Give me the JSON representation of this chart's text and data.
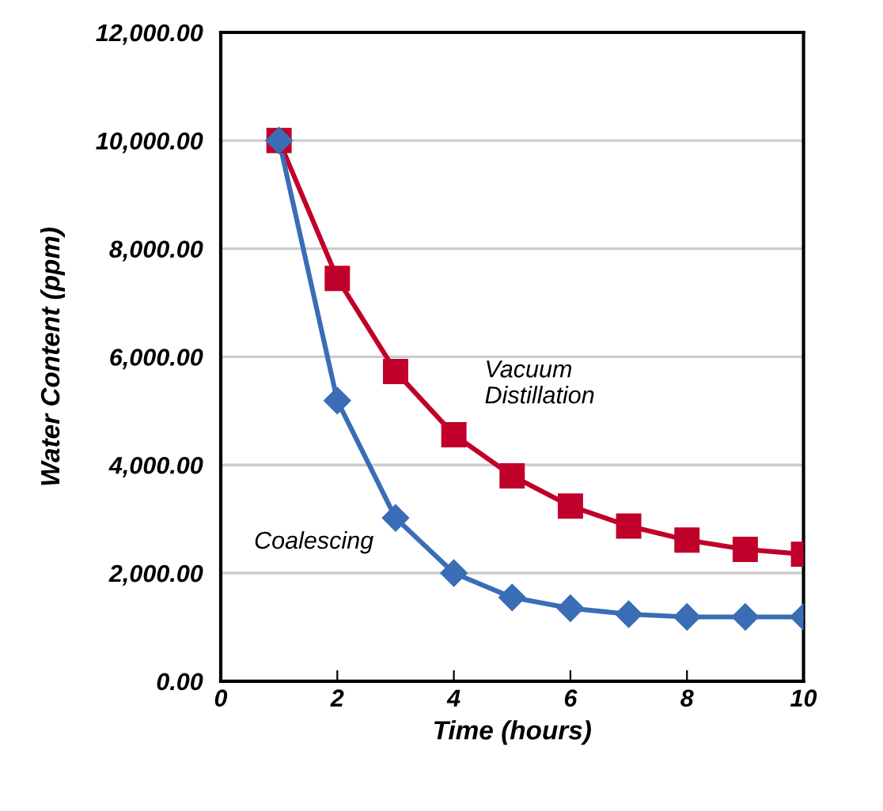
{
  "chart_data": {
    "type": "line",
    "xlabel": "Time (hours)",
    "ylabel": "Water Content (ppm)",
    "x": [
      1,
      2,
      3,
      4,
      5,
      6,
      7,
      8,
      9,
      10
    ],
    "series": [
      {
        "name": "Vacuum\nDistillation",
        "color": "#c0002a",
        "marker": "square",
        "values": [
          10000,
          7450,
          5730,
          4560,
          3800,
          3240,
          2870,
          2610,
          2440,
          2350
        ]
      },
      {
        "name": "Coalescing",
        "color": "#3a6db5",
        "marker": "diamond",
        "values": [
          10000,
          5190,
          3020,
          2000,
          1550,
          1350,
          1240,
          1190,
          1190,
          1190
        ]
      }
    ],
    "xlim": [
      0,
      10
    ],
    "xticks": [
      0,
      2,
      4,
      6,
      8,
      10
    ],
    "ylim": [
      0,
      12000
    ],
    "yticks": [
      {
        "value": 0,
        "label": "0.00"
      },
      {
        "value": 2000,
        "label": "2,000.00"
      },
      {
        "value": 4000,
        "label": "4,000.00"
      },
      {
        "value": 6000,
        "label": "6,000.00"
      },
      {
        "value": 8000,
        "label": "8,000.00"
      },
      {
        "value": 10000,
        "label": "10,000.00"
      },
      {
        "value": 12000,
        "label": "12,000.00"
      }
    ],
    "grid": "y"
  }
}
